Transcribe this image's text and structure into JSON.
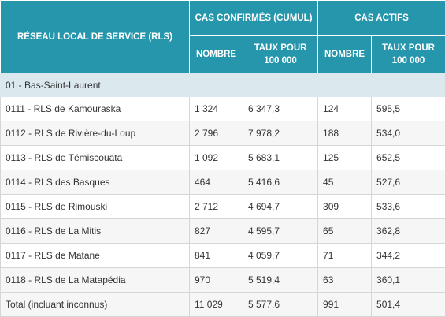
{
  "table": {
    "header": {
      "rls": "RÉSEAU LOCAL DE SERVICE (RLS)",
      "confirmed_group": "CAS CONFIRMÉS (CUMUL)",
      "active_group": "CAS ACTIFS",
      "sub_number": "NOMBRE",
      "sub_rate": "TAUX POUR 100 000"
    },
    "region": "01 - Bas-Saint-Laurent",
    "rows": [
      {
        "name": "0111 - RLS de Kamouraska",
        "conf_n": "1 324",
        "conf_rate": "6 347,3",
        "act_n": "124",
        "act_rate": "595,5"
      },
      {
        "name": "0112 - RLS de Rivière-du-Loup",
        "conf_n": "2 796",
        "conf_rate": "7 978,2",
        "act_n": "188",
        "act_rate": "534,0"
      },
      {
        "name": "0113 - RLS de Témiscouata",
        "conf_n": "1 092",
        "conf_rate": "5 683,1",
        "act_n": "125",
        "act_rate": "652,5"
      },
      {
        "name": "0114 - RLS des Basques",
        "conf_n": "464",
        "conf_rate": "5 416,6",
        "act_n": "45",
        "act_rate": "527,6"
      },
      {
        "name": "0115 - RLS de Rimouski",
        "conf_n": "2 712",
        "conf_rate": "4 694,7",
        "act_n": "309",
        "act_rate": "533,6"
      },
      {
        "name": "0116 - RLS de La Mitis",
        "conf_n": "827",
        "conf_rate": "4 595,7",
        "act_n": "65",
        "act_rate": "362,8"
      },
      {
        "name": "0117 - RLS de Matane",
        "conf_n": "841",
        "conf_rate": "4 059,7",
        "act_n": "71",
        "act_rate": "344,2"
      },
      {
        "name": "0118 - RLS de La Matapédia",
        "conf_n": "970",
        "conf_rate": "5 519,4",
        "act_n": "63",
        "act_rate": "360,1"
      }
    ],
    "total": {
      "name": "Total (incluant inconnus)",
      "conf_n": "11 029",
      "conf_rate": "5 577,6",
      "act_n": "991",
      "act_rate": "501,4"
    },
    "colors": {
      "header": "#2596ab",
      "region_row": "#dbe9ef",
      "alt_row": "#f6f6f6",
      "border": "#d6d6d6"
    }
  }
}
